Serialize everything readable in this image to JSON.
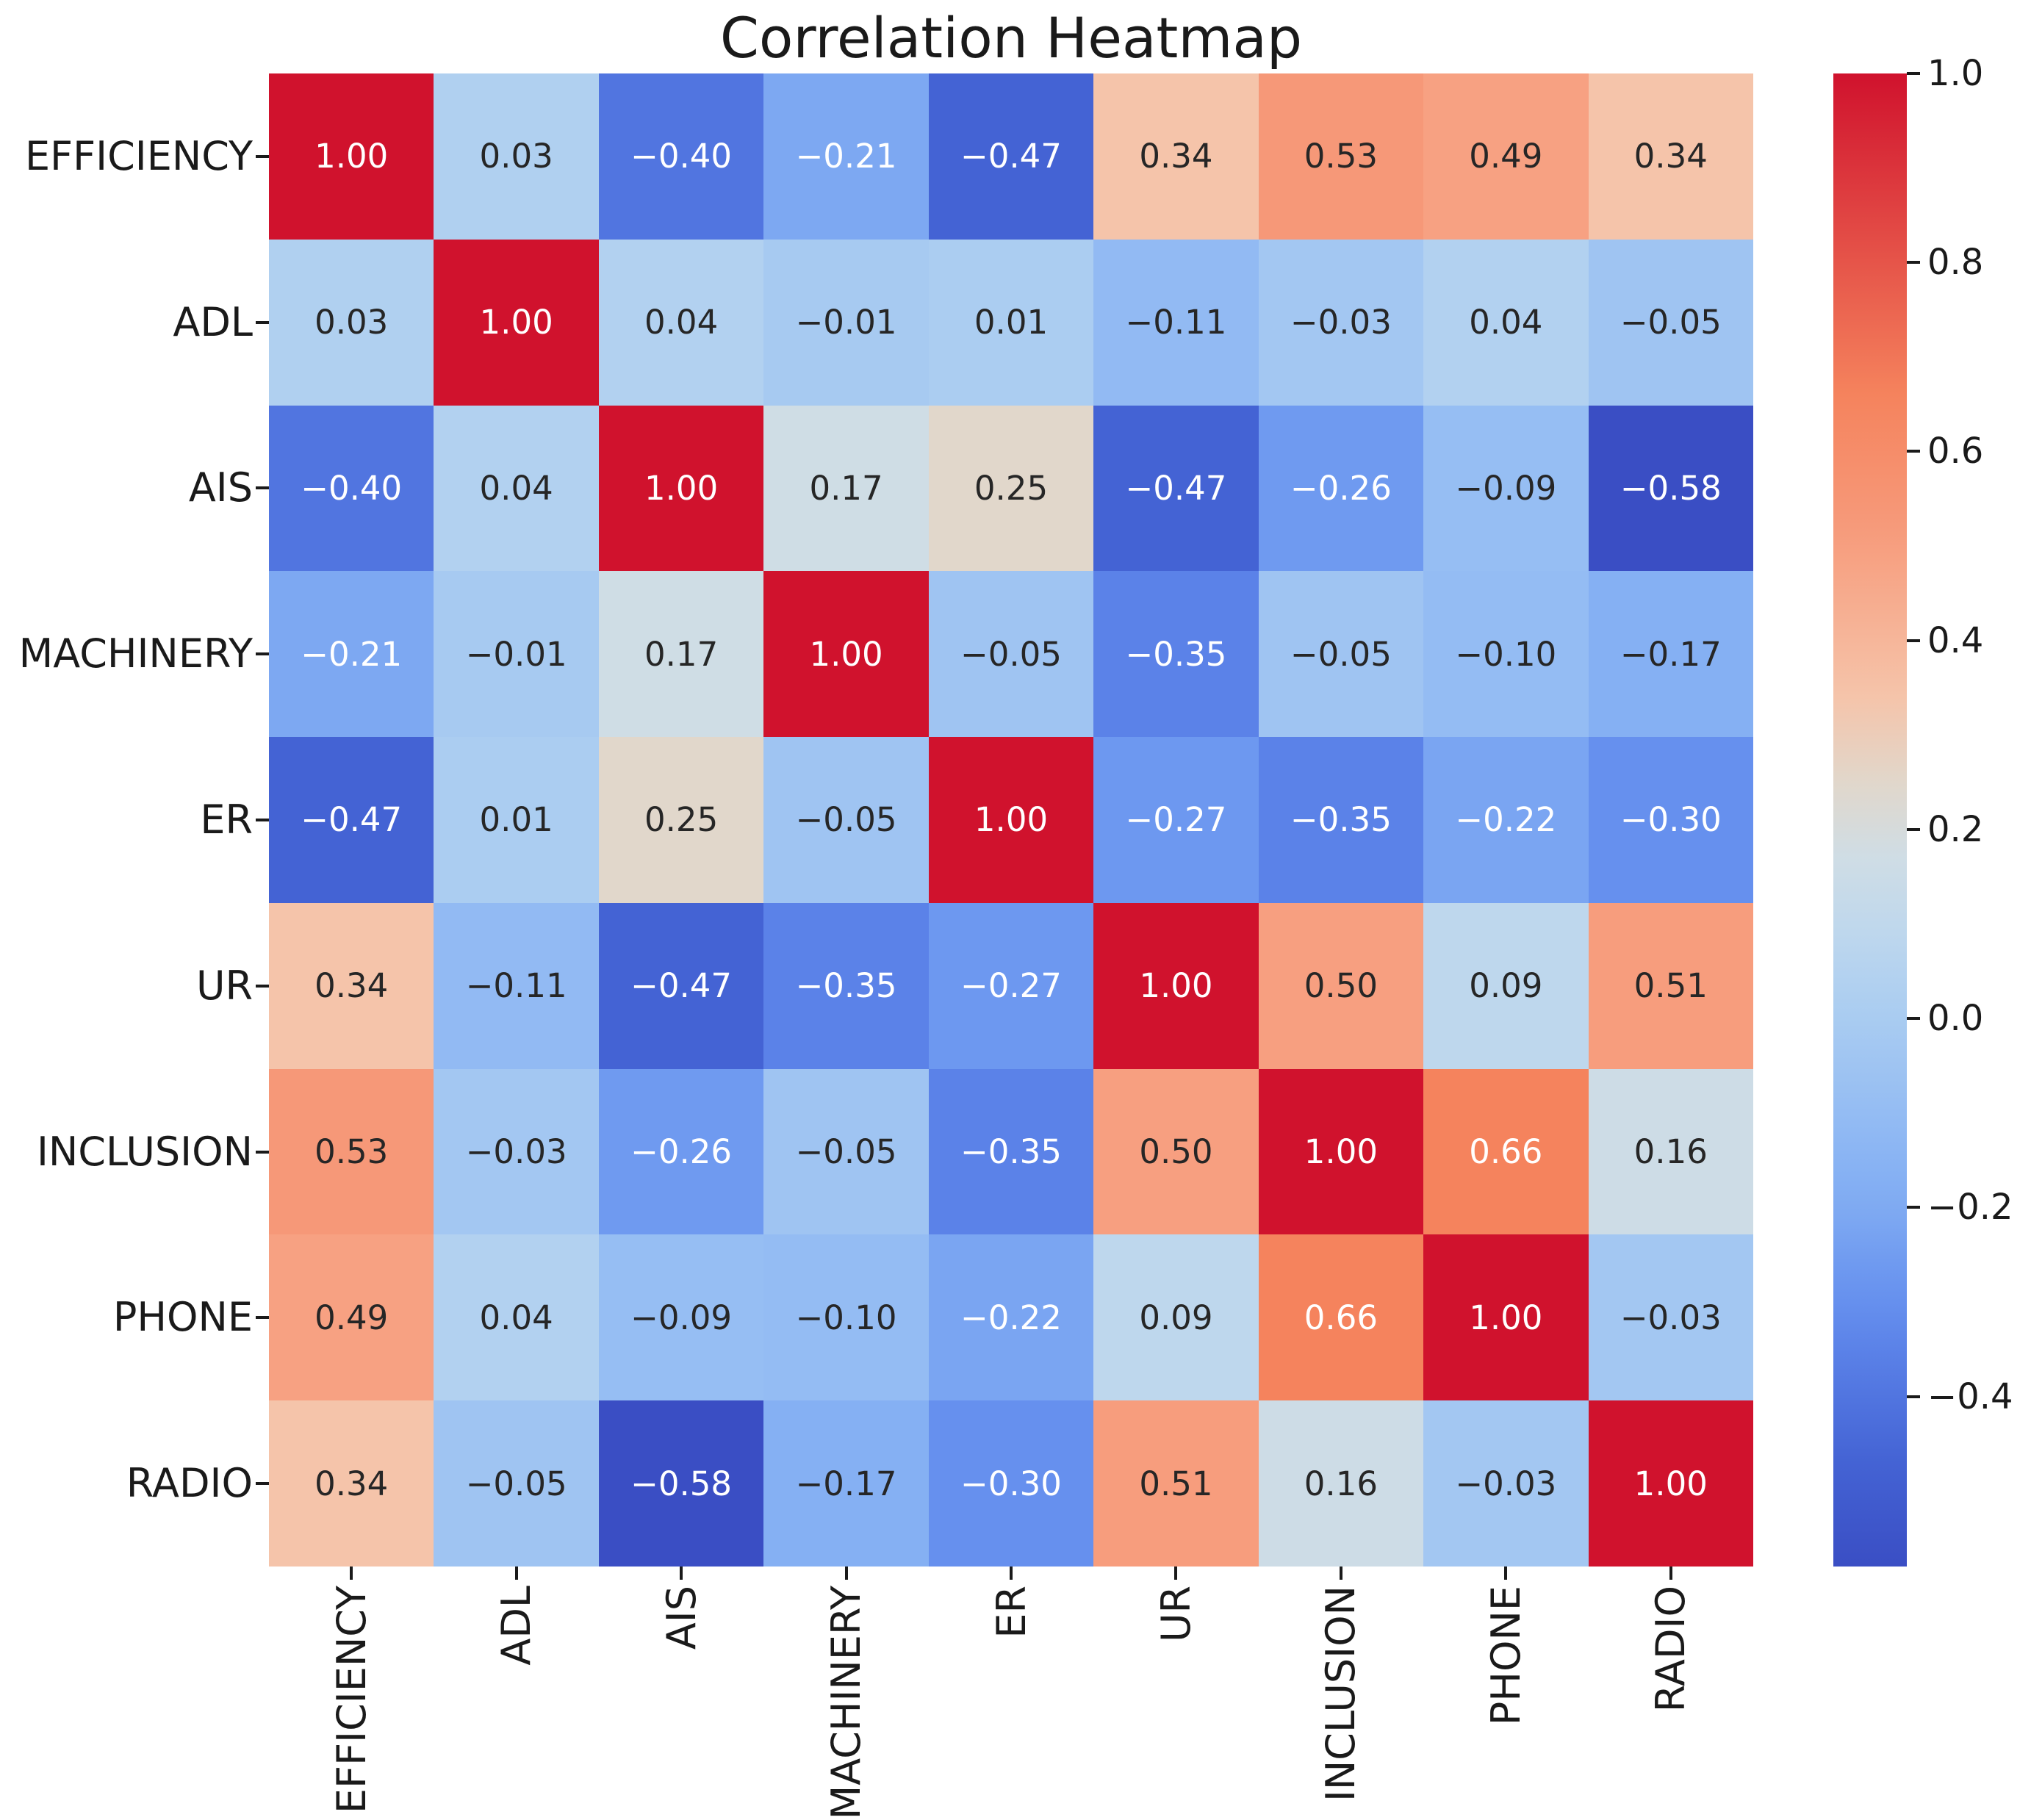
{
  "figure": {
    "background": "#ffffff",
    "text_color": "#1a1a1a"
  },
  "chart_data": {
    "type": "heatmap",
    "title": "Correlation Heatmap",
    "categories": [
      "EFFICIENCY",
      "ADL",
      "AIS",
      "MACHINERY",
      "ER",
      "UR",
      "INCLUSION",
      "PHONE",
      "RADIO"
    ],
    "matrix": [
      [
        1.0,
        0.03,
        -0.4,
        -0.21,
        -0.47,
        0.34,
        0.53,
        0.49,
        0.34
      ],
      [
        0.03,
        1.0,
        0.04,
        -0.01,
        0.01,
        -0.11,
        -0.03,
        0.04,
        -0.05
      ],
      [
        -0.4,
        0.04,
        1.0,
        0.17,
        0.25,
        -0.47,
        -0.26,
        -0.09,
        -0.58
      ],
      [
        -0.21,
        -0.01,
        0.17,
        1.0,
        -0.05,
        -0.35,
        -0.05,
        -0.1,
        -0.17
      ],
      [
        -0.47,
        0.01,
        0.25,
        -0.05,
        1.0,
        -0.27,
        -0.35,
        -0.22,
        -0.3
      ],
      [
        0.34,
        -0.11,
        -0.47,
        -0.35,
        -0.27,
        1.0,
        0.5,
        0.09,
        0.51
      ],
      [
        0.53,
        -0.03,
        -0.26,
        -0.05,
        -0.35,
        0.5,
        1.0,
        0.66,
        0.16
      ],
      [
        0.49,
        0.04,
        -0.09,
        -0.1,
        -0.22,
        0.09,
        0.66,
        1.0,
        -0.03
      ],
      [
        0.34,
        -0.05,
        -0.58,
        -0.17,
        -0.3,
        0.51,
        0.16,
        -0.03,
        1.0
      ]
    ],
    "value_decimals": 2,
    "legend_position": "right",
    "grid": false,
    "colorbar": {
      "vmin": -0.58,
      "vmax": 1.0,
      "ticks": [
        1.0,
        0.8,
        0.6,
        0.4,
        0.2,
        0.0,
        -0.2,
        -0.4
      ],
      "tick_decimals": 1
    },
    "colormap": {
      "name": "coolwarm",
      "anchors": [
        [
          -0.58,
          "#3A4EC4"
        ],
        [
          -0.47,
          "#4463D4"
        ],
        [
          -0.4,
          "#5175E0"
        ],
        [
          -0.35,
          "#5B82E8"
        ],
        [
          -0.3,
          "#6690EE"
        ],
        [
          -0.26,
          "#6F9AF0"
        ],
        [
          -0.21,
          "#7DA8F2"
        ],
        [
          -0.17,
          "#85B0F3"
        ],
        [
          -0.1,
          "#94BCF3"
        ],
        [
          -0.05,
          "#9FC4F2"
        ],
        [
          0.0,
          "#A9CCF1"
        ],
        [
          0.04,
          "#B2D1F0"
        ],
        [
          0.09,
          "#BED7ED"
        ],
        [
          0.17,
          "#CFDDE5"
        ],
        [
          0.25,
          "#E1D7CB"
        ],
        [
          0.34,
          "#F5C4AA"
        ],
        [
          0.49,
          "#F7A182"
        ],
        [
          0.53,
          "#F69878"
        ],
        [
          0.66,
          "#F5835D"
        ],
        [
          1.0,
          "#D0122D"
        ]
      ]
    },
    "annotation_colors": {
      "dark": "#262626",
      "light": "#ffffff",
      "luminance_threshold": 0.408
    }
  }
}
